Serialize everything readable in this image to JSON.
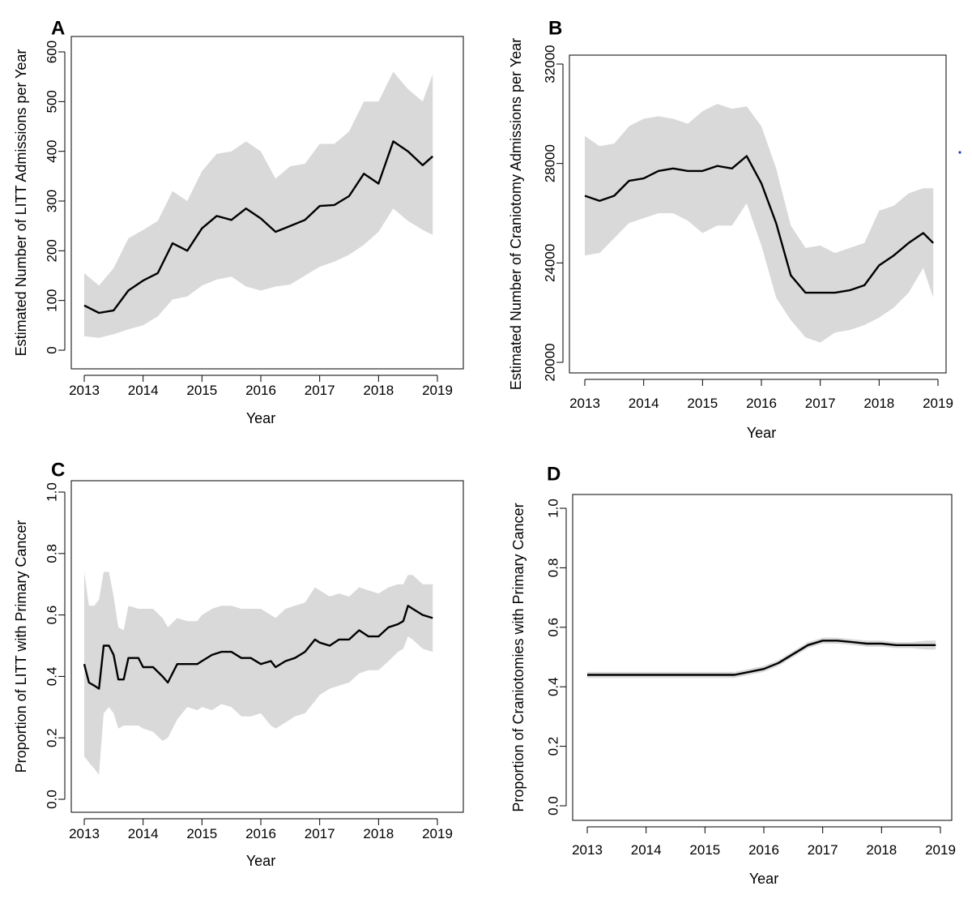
{
  "colors": {
    "ci_band": "#d9d9d9",
    "line": "#000000",
    "stray_dot": "#1f3fbf"
  },
  "chart_data": [
    {
      "panel": "A",
      "type": "line",
      "xlabel": "Year",
      "ylabel": "Estimated Number of LITT Admissions per Year",
      "xlim": [
        2013,
        2019
      ],
      "ylim": [
        0,
        600
      ],
      "x_ticks": [
        "2013",
        "2014",
        "2015",
        "2016",
        "2017",
        "2018",
        "2019"
      ],
      "y_ticks": [
        "0",
        "100",
        "200",
        "300",
        "400",
        "500",
        "600"
      ],
      "band": "95% interval",
      "x": [
        2013.0,
        2013.25,
        2013.5,
        2013.75,
        2014.0,
        2014.25,
        2014.5,
        2014.75,
        2015.0,
        2015.25,
        2015.5,
        2015.75,
        2016.0,
        2016.25,
        2016.5,
        2016.75,
        2017.0,
        2017.25,
        2017.5,
        2017.75,
        2018.0,
        2018.25,
        2018.5,
        2018.75,
        2018.92
      ],
      "estimate": [
        90,
        75,
        80,
        120,
        140,
        155,
        215,
        200,
        245,
        270,
        262,
        285,
        265,
        238,
        250,
        262,
        290,
        292,
        310,
        355,
        335,
        420,
        400,
        372,
        390
      ],
      "lower": [
        28,
        25,
        32,
        42,
        50,
        68,
        102,
        108,
        130,
        142,
        148,
        128,
        120,
        128,
        132,
        150,
        168,
        178,
        192,
        212,
        238,
        285,
        260,
        242,
        232
      ],
      "upper": [
        155,
        130,
        165,
        225,
        242,
        260,
        320,
        300,
        360,
        395,
        400,
        420,
        400,
        345,
        370,
        375,
        415,
        415,
        440,
        500,
        500,
        560,
        525,
        500,
        555
      ]
    },
    {
      "panel": "B",
      "type": "line",
      "xlabel": "Year",
      "ylabel": "Estimated Number of Craniotomy Admissions per Year",
      "xlim": [
        2013,
        2019
      ],
      "ylim": [
        20000,
        32000
      ],
      "x_ticks": [
        "2013",
        "2014",
        "2015",
        "2016",
        "2017",
        "2018",
        "2019"
      ],
      "y_ticks": [
        "20000",
        "24000",
        "28000",
        "32000"
      ],
      "band": "95% interval",
      "x": [
        2013.0,
        2013.25,
        2013.5,
        2013.75,
        2014.0,
        2014.25,
        2014.5,
        2014.75,
        2015.0,
        2015.25,
        2015.5,
        2015.75,
        2016.0,
        2016.25,
        2016.5,
        2016.75,
        2017.0,
        2017.25,
        2017.5,
        2017.75,
        2018.0,
        2018.25,
        2018.5,
        2018.75,
        2018.92
      ],
      "estimate": [
        26700,
        26500,
        26700,
        27300,
        27400,
        27700,
        27800,
        27700,
        27700,
        27900,
        27800,
        28300,
        27200,
        25600,
        23500,
        22800,
        22800,
        22800,
        22900,
        23100,
        23900,
        24300,
        24800,
        25200,
        24800
      ],
      "lower": [
        24300,
        24400,
        25000,
        25600,
        25800,
        26000,
        26000,
        25700,
        25200,
        25500,
        25500,
        26400,
        24700,
        22600,
        21700,
        21000,
        20800,
        21200,
        21300,
        21500,
        21800,
        22200,
        22800,
        23800,
        22600
      ],
      "upper": [
        29100,
        28700,
        28800,
        29500,
        29800,
        29900,
        29800,
        29600,
        30100,
        30400,
        30200,
        30300,
        29500,
        27800,
        25500,
        24600,
        24700,
        24400,
        24600,
        24800,
        26100,
        26300,
        26800,
        27000,
        27000
      ]
    },
    {
      "panel": "C",
      "type": "line",
      "xlabel": "Year",
      "ylabel": "Proportion of LITT with Primary Cancer",
      "xlim": [
        2013,
        2019
      ],
      "ylim": [
        0.0,
        1.0
      ],
      "x_ticks": [
        "2013",
        "2014",
        "2015",
        "2016",
        "2017",
        "2018",
        "2019"
      ],
      "y_ticks": [
        "0.0",
        "0.2",
        "0.4",
        "0.6",
        "0.8",
        "1.0"
      ],
      "band": "95% interval",
      "x": [
        2013.0,
        2013.08,
        2013.17,
        2013.25,
        2013.33,
        2013.42,
        2013.5,
        2013.58,
        2013.67,
        2013.75,
        2013.92,
        2014.0,
        2014.17,
        2014.33,
        2014.42,
        2014.58,
        2014.75,
        2014.92,
        2015.0,
        2015.17,
        2015.33,
        2015.5,
        2015.67,
        2015.83,
        2016.0,
        2016.17,
        2016.25,
        2016.42,
        2016.58,
        2016.75,
        2016.92,
        2017.0,
        2017.17,
        2017.33,
        2017.5,
        2017.67,
        2017.83,
        2018.0,
        2018.17,
        2018.33,
        2018.42,
        2018.5,
        2018.58,
        2018.75,
        2018.92
      ],
      "estimate": [
        0.44,
        0.38,
        0.37,
        0.36,
        0.5,
        0.5,
        0.47,
        0.39,
        0.39,
        0.46,
        0.46,
        0.43,
        0.43,
        0.4,
        0.38,
        0.44,
        0.44,
        0.44,
        0.45,
        0.47,
        0.48,
        0.48,
        0.46,
        0.46,
        0.44,
        0.45,
        0.43,
        0.45,
        0.46,
        0.48,
        0.52,
        0.51,
        0.5,
        0.52,
        0.52,
        0.55,
        0.53,
        0.53,
        0.56,
        0.57,
        0.58,
        0.63,
        0.62,
        0.6,
        0.59
      ],
      "lower": [
        0.14,
        0.12,
        0.1,
        0.08,
        0.28,
        0.3,
        0.28,
        0.23,
        0.24,
        0.24,
        0.24,
        0.23,
        0.22,
        0.19,
        0.2,
        0.26,
        0.3,
        0.29,
        0.3,
        0.29,
        0.31,
        0.3,
        0.27,
        0.27,
        0.28,
        0.24,
        0.23,
        0.25,
        0.27,
        0.28,
        0.32,
        0.34,
        0.36,
        0.37,
        0.38,
        0.41,
        0.42,
        0.42,
        0.45,
        0.48,
        0.49,
        0.53,
        0.52,
        0.49,
        0.48
      ],
      "upper": [
        0.74,
        0.63,
        0.63,
        0.65,
        0.74,
        0.74,
        0.66,
        0.56,
        0.55,
        0.63,
        0.62,
        0.62,
        0.62,
        0.59,
        0.56,
        0.59,
        0.58,
        0.58,
        0.6,
        0.62,
        0.63,
        0.63,
        0.62,
        0.62,
        0.62,
        0.6,
        0.59,
        0.62,
        0.63,
        0.64,
        0.69,
        0.68,
        0.66,
        0.67,
        0.66,
        0.69,
        0.68,
        0.67,
        0.69,
        0.7,
        0.7,
        0.73,
        0.73,
        0.7,
        0.7
      ]
    },
    {
      "panel": "D",
      "type": "line",
      "xlabel": "Year",
      "ylabel": "Proportion of Craniotomies with Primary Cancer",
      "xlim": [
        2013,
        2019
      ],
      "ylim": [
        0.0,
        1.0
      ],
      "x_ticks": [
        "2013",
        "2014",
        "2015",
        "2016",
        "2017",
        "2018",
        "2019"
      ],
      "y_ticks": [
        "0.0",
        "0.2",
        "0.4",
        "0.6",
        "0.8",
        "1.0"
      ],
      "band": "95% interval",
      "x": [
        2013.0,
        2013.25,
        2013.5,
        2013.75,
        2014.0,
        2014.25,
        2014.5,
        2014.75,
        2015.0,
        2015.25,
        2015.5,
        2015.75,
        2016.0,
        2016.25,
        2016.5,
        2016.75,
        2017.0,
        2017.25,
        2017.5,
        2017.75,
        2018.0,
        2018.25,
        2018.5,
        2018.75,
        2018.92
      ],
      "estimate": [
        0.44,
        0.44,
        0.44,
        0.44,
        0.44,
        0.44,
        0.44,
        0.44,
        0.44,
        0.44,
        0.44,
        0.45,
        0.46,
        0.48,
        0.51,
        0.54,
        0.555,
        0.555,
        0.55,
        0.545,
        0.545,
        0.54,
        0.54,
        0.54,
        0.54
      ],
      "lower": [
        0.43,
        0.43,
        0.43,
        0.43,
        0.43,
        0.43,
        0.43,
        0.43,
        0.43,
        0.43,
        0.43,
        0.44,
        0.45,
        0.47,
        0.5,
        0.53,
        0.545,
        0.545,
        0.54,
        0.535,
        0.535,
        0.53,
        0.53,
        0.525,
        0.525
      ],
      "upper": [
        0.45,
        0.45,
        0.45,
        0.45,
        0.45,
        0.45,
        0.45,
        0.45,
        0.45,
        0.45,
        0.45,
        0.46,
        0.47,
        0.49,
        0.52,
        0.55,
        0.565,
        0.565,
        0.56,
        0.555,
        0.555,
        0.55,
        0.55,
        0.555,
        0.555
      ]
    }
  ]
}
